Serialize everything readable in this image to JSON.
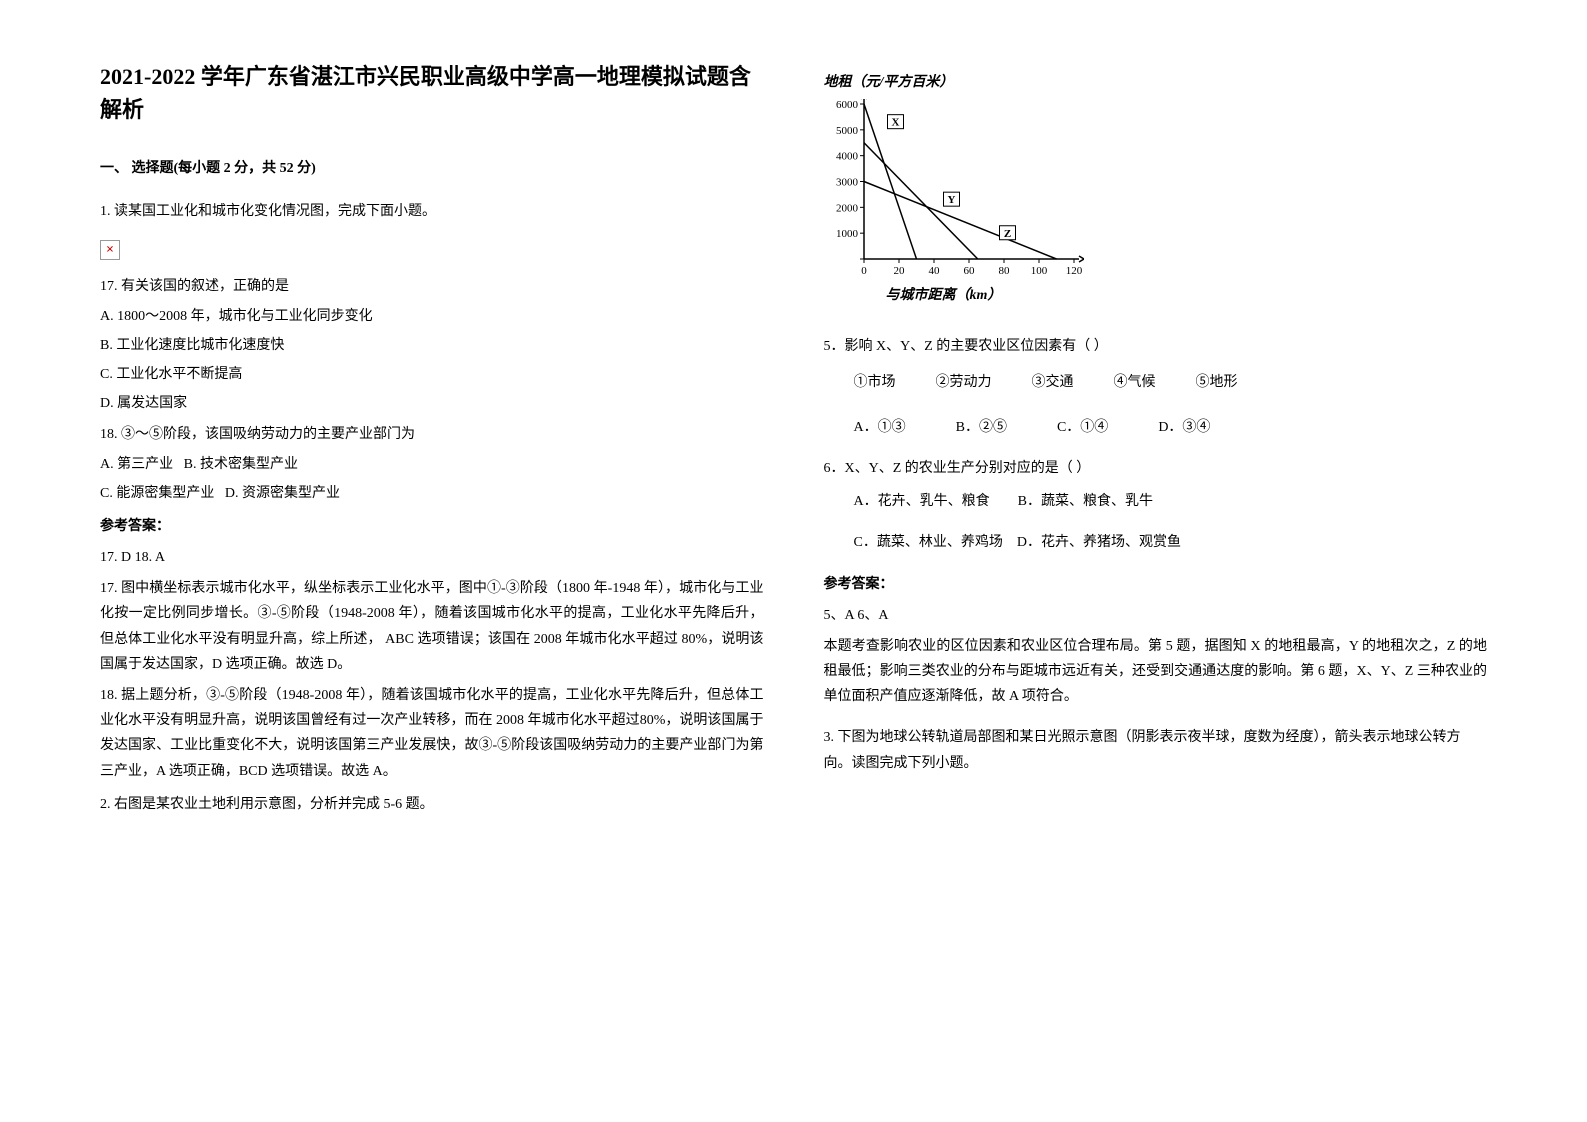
{
  "title": "2021-2022 学年广东省湛江市兴民职业高级中学高一地理模拟试题含解析",
  "section1_header": "一、 选择题(每小题 2 分，共 52 分)",
  "q1": {
    "stem": "1. 读某国工业化和城市化变化情况图，完成下面小题。",
    "sub17": {
      "stem": "17.  有关该国的叙述，正确的是",
      "optA": "A.  1800～2008 年，城市化与工业化同步变化",
      "optB": "B.  工业化速度比城市化速度快",
      "optC": "C.  工业化水平不断提高",
      "optD": "D.  属发达国家"
    },
    "sub18": {
      "stem": "18.  ③～⑤阶段，该国吸纳劳动力的主要产业部门为",
      "optA": "A.  第三产业",
      "optB": "B.  技术密集型产业",
      "optC": "C.  能源密集型产业",
      "optD": "D.  资源密集型产业"
    },
    "answer_label": "参考答案：",
    "answer_line": "17.  D          18.  A",
    "explanation17": "17. 图中横坐标表示城市化水平，纵坐标表示工业化水平，图中①-③阶段（1800 年-1948 年），城市化与工业化按一定比例同步增长。③-⑤阶段（1948-2008 年），随着该国城市化水平的提高，工业化水平先降后升，但总体工业化水平没有明显升高，综上所述， ABC 选项错误；该国在 2008 年城市化水平超过 80%，说明该国属于发达国家，D 选项正确。故选 D。",
    "explanation18": "18. 据上题分析，③-⑤阶段（1948-2008 年），随着该国城市化水平的提高，工业化水平先降后升，但总体工业化水平没有明显升高，说明该国曾经有过一次产业转移，而在 2008 年城市化水平超过80%，说明该国属于发达国家、工业比重变化不大，说明该国第三产业发展快，故③-⑤阶段该国吸纳劳动力的主要产业部门为第三产业，A 选项正确，BCD 选项错误。故选 A。"
  },
  "q2": {
    "stem": "2. 右图是某农业土地利用示意图，分析并完成 5-6 题。",
    "chart": {
      "type": "line",
      "ylabel": "地租（元/平方百米）",
      "xlabel": "与城市距离（km）",
      "xlim": [
        0,
        120
      ],
      "ylim": [
        0,
        6000
      ],
      "xticks": [
        0,
        20,
        40,
        60,
        80,
        100,
        120
      ],
      "yticks": [
        0,
        1000,
        2000,
        3000,
        4000,
        5000,
        6000
      ],
      "background_color": "#ffffff",
      "axis_color": "#000000",
      "tick_color": "#000000",
      "line_color": "#000000",
      "line_width": 1.5,
      "font_size": 11,
      "series": [
        {
          "label": "X",
          "label_pos": [
            18,
            5200
          ],
          "p1": [
            0,
            6000
          ],
          "p2": [
            30,
            0
          ]
        },
        {
          "label": "Y",
          "label_pos": [
            50,
            2200
          ],
          "p1": [
            0,
            4500
          ],
          "p2": [
            65,
            0
          ]
        },
        {
          "label": "Z",
          "label_pos": [
            82,
            900
          ],
          "p1": [
            0,
            3000
          ],
          "p2": [
            110,
            0
          ]
        }
      ]
    },
    "sub5": {
      "stem": "5．影响 X、Y、Z 的主要农业区位因素有（     ）",
      "factors": [
        "①市场",
        "②劳动力",
        "③交通",
        "④气候",
        "⑤地形"
      ],
      "optA": "A．①③",
      "optB": "B．②⑤",
      "optC": "C．①④",
      "optD": "D．③④"
    },
    "sub6": {
      "stem": "6．X、Y、Z 的农业生产分别对应的是（     ）",
      "optA": "A．花卉、乳牛、粮食",
      "optB": "B．蔬菜、粮食、乳牛",
      "optC": "C．蔬菜、林业、养鸡场",
      "optD": "D．花卉、养猪场、观赏鱼"
    },
    "answer_label": "参考答案：",
    "answer_line": "5、A   6、A",
    "explanation": "本题考查影响农业的区位因素和农业区位合理布局。第 5 题，据图知 X 的地租最高，Y 的地租次之，Z 的地租最低；影响三类农业的分布与距城市远近有关，还受到交通通达度的影响。第 6 题，X、Y、Z 三种农业的单位面积产值应逐渐降低，故 A 项符合。"
  },
  "q3": {
    "stem": "3. 下图为地球公转轨道局部图和某日光照示意图（阴影表示夜半球，度数为经度），箭头表示地球公转方向。读图完成下列小题。"
  }
}
